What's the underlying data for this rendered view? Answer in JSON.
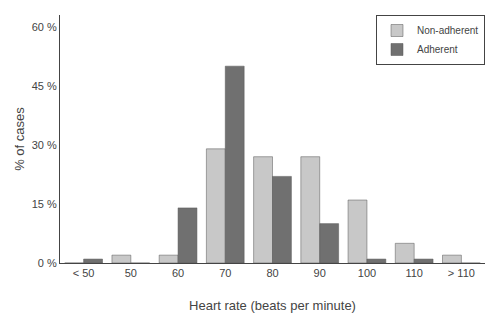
{
  "chart_data": {
    "type": "bar",
    "xlabel": "Heart rate (beats per minute)",
    "ylabel": "% of cases",
    "categories": [
      "< 50",
      "50",
      "60",
      "70",
      "80",
      "90",
      "100",
      "110",
      "> 110"
    ],
    "series": [
      {
        "name": "Non-adherent",
        "color": "#c8c8c8",
        "values": [
          0,
          2,
          2,
          29,
          27,
          27,
          16,
          5,
          2
        ]
      },
      {
        "name": "Adherent",
        "color": "#707070",
        "values": [
          1,
          0,
          14,
          50,
          22,
          10,
          1,
          1,
          0
        ]
      }
    ],
    "ylim": [
      0,
      63
    ],
    "yticks": [
      {
        "value": 0,
        "label": "0 %"
      },
      {
        "value": 15,
        "label": "15 %"
      },
      {
        "value": 30,
        "label": "30 %"
      },
      {
        "value": 45,
        "label": "45 %"
      },
      {
        "value": 60,
        "label": "60 %"
      }
    ],
    "grid": false,
    "legend": "upper right"
  }
}
